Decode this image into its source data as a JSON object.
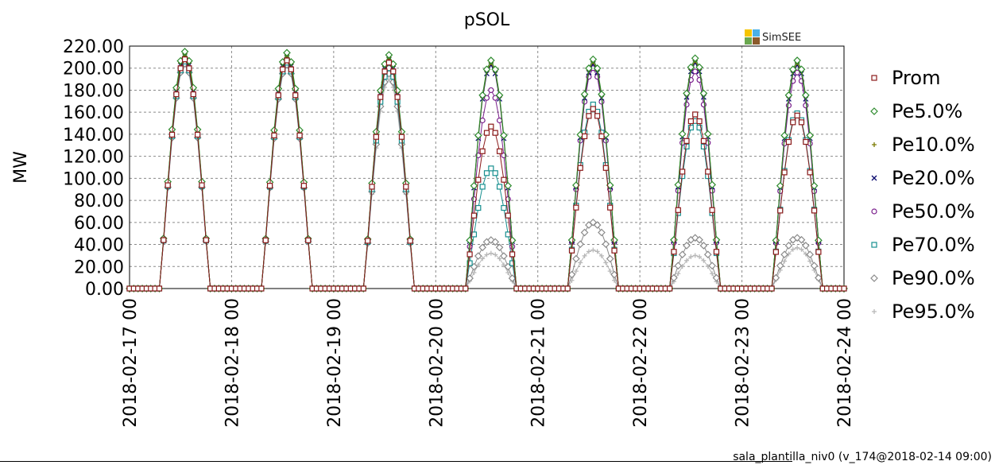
{
  "footer": "sala_plantilla_niv0 (v_174@2018-02-14 09:00)",
  "logo": {
    "text": "SimSEE",
    "colors": [
      "#F5C400",
      "#4AB0E8",
      "#6AA84F",
      "#8B5A2B"
    ]
  },
  "chart_data": {
    "type": "line",
    "title": "pSOL",
    "ylabel": "MW",
    "xlabel": "",
    "ylim": [
      0,
      220
    ],
    "yticks": [
      "0.00",
      "20.00",
      "40.00",
      "60.00",
      "80.00",
      "100.00",
      "120.00",
      "140.00",
      "160.00",
      "180.00",
      "200.00",
      "220.00"
    ],
    "xticks": [
      "2018-02-17 00",
      "2018-02-18 00",
      "2018-02-19 00",
      "2018-02-20 00",
      "2018-02-21 00",
      "2018-02-22 00",
      "2018-02-23 00",
      "2018-02-24 00"
    ],
    "x_range_days": 7,
    "grid": true,
    "legend_position": "right",
    "daily_profile_hours": [
      0,
      1,
      2,
      3,
      4,
      5,
      6,
      7,
      8,
      9,
      10,
      11,
      12,
      13,
      14,
      15,
      16,
      17,
      18,
      19,
      20,
      21,
      22,
      23
    ],
    "series": [
      {
        "name": "Prom",
        "color": "#8B1A1A",
        "marker": "square",
        "peaks": [
          208,
          207,
          205,
          147,
          163,
          158,
          157
        ]
      },
      {
        "name": "Pe5.0%",
        "color": "#2E8B2E",
        "marker": "diamond",
        "peaks": [
          215,
          214,
          212,
          207,
          208,
          209,
          207
        ]
      },
      {
        "name": "Pe10.0%",
        "color": "#7A7A00",
        "marker": "plus",
        "peaks": [
          213,
          212,
          210,
          205,
          206,
          207,
          205
        ]
      },
      {
        "name": "Pe20.0%",
        "color": "#0A0A6E",
        "marker": "x",
        "peaks": [
          211,
          210,
          208,
          203,
          204,
          205,
          203
        ]
      },
      {
        "name": "Pe50.0%",
        "color": "#7A1F8C",
        "marker": "circle",
        "peaks": [
          209,
          208,
          206,
          180,
          200,
          197,
          196
        ]
      },
      {
        "name": "Pe70.0%",
        "color": "#178F8F",
        "marker": "square",
        "peaks": [
          206,
          205,
          200,
          109,
          167,
          152,
          159
        ]
      },
      {
        "name": "Pe90.0%",
        "color": "#8A8A8A",
        "marker": "diamond",
        "peaks": [
          204,
          203,
          195,
          44,
          60,
          46,
          46
        ]
      },
      {
        "name": "Pe95.0%",
        "color": "#B8B8B8",
        "marker": "plus",
        "peaks": [
          203,
          202,
          190,
          32,
          35,
          30,
          37
        ]
      }
    ]
  }
}
